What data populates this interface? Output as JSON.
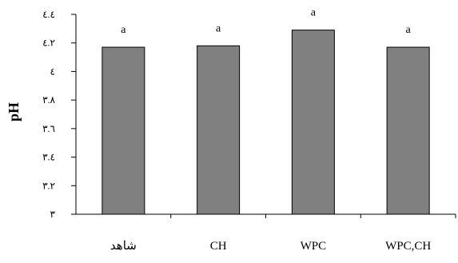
{
  "chart_data": {
    "type": "bar",
    "title": "",
    "xlabel": "",
    "ylabel": "pH",
    "categories": [
      "شاهد",
      "CH",
      "WPC",
      "WPC,CH"
    ],
    "values": [
      4.17,
      4.18,
      4.29,
      4.17
    ],
    "data_labels": [
      "a",
      "a",
      "a",
      "a"
    ],
    "y_ticks": [
      3,
      3.2,
      3.4,
      3.6,
      3.8,
      4,
      4.2,
      4.4
    ],
    "y_tick_labels": [
      "٣",
      "٣.٢",
      "٣.٤",
      "٣.٦",
      "٣.٨",
      "٤",
      "٤.٢",
      "٤.٤"
    ],
    "ylim": [
      3,
      4.4
    ],
    "grid": false,
    "legend": "none",
    "colors": {
      "bar_fill": "#808080",
      "bar_stroke": "#000000",
      "axis": "#000000"
    }
  }
}
